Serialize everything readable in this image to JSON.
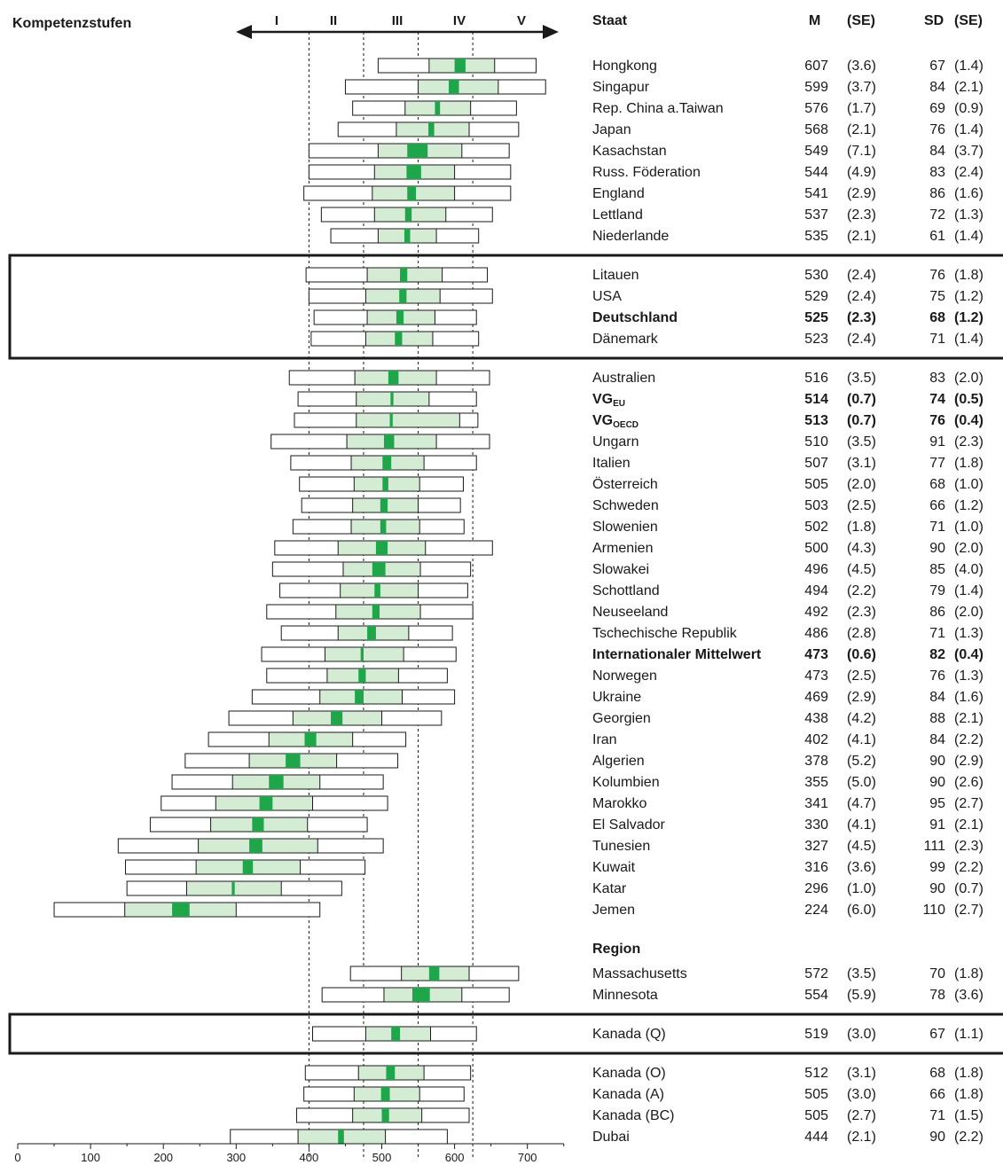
{
  "chart_data": {
    "type": "boxplot",
    "title": "Kompetenzstufen",
    "levels": [
      "I",
      "II",
      "III",
      "IV",
      "V"
    ],
    "level_cutoffs": [
      400,
      475,
      550,
      625
    ],
    "x_ticks": [
      0,
      100,
      200,
      300,
      400,
      500,
      600,
      700
    ],
    "xlim": [
      0,
      750
    ],
    "columns": {
      "country": "Staat",
      "mean": "M",
      "se_mean": "(SE)",
      "sd": "SD",
      "se_sd": "(SE)"
    },
    "groups": [
      {
        "framed": false,
        "rows": [
          {
            "name": "Hongkong",
            "M": "607",
            "SE": "(3.6)",
            "SD": "67",
            "SDSE": "(1.4)",
            "p5": 495,
            "p25": 565,
            "p75": 655,
            "p95": 712,
            "ci": [
              600,
              615
            ]
          },
          {
            "name": "Singapur",
            "M": "599",
            "SE": "(3.7)",
            "SD": "84",
            "SDSE": "(2.1)",
            "p5": 450,
            "p25": 550,
            "p75": 660,
            "p95": 725,
            "ci": [
              592,
              606
            ]
          },
          {
            "name": "Rep. China a.Taiwan",
            "M": "576",
            "SE": "(1.7)",
            "SD": "69",
            "SDSE": "(0.9)",
            "p5": 460,
            "p25": 532,
            "p75": 622,
            "p95": 685,
            "ci": [
              573,
              580
            ]
          },
          {
            "name": "Japan",
            "M": "568",
            "SE": "(2.1)",
            "SD": "76",
            "SDSE": "(1.4)",
            "p5": 440,
            "p25": 520,
            "p75": 620,
            "p95": 688,
            "ci": [
              564,
              572
            ]
          },
          {
            "name": "Kasachstan",
            "M": "549",
            "SE": "(7.1)",
            "SD": "84",
            "SDSE": "(3.7)",
            "p5": 400,
            "p25": 495,
            "p75": 610,
            "p95": 675,
            "ci": [
              535,
              563
            ]
          },
          {
            "name": "Russ. Föderation",
            "M": "544",
            "SE": "(4.9)",
            "SD": "83",
            "SDSE": "(2.4)",
            "p5": 400,
            "p25": 490,
            "p75": 600,
            "p95": 677,
            "ci": [
              534,
              554
            ]
          },
          {
            "name": "England",
            "M": "541",
            "SE": "(2.9)",
            "SD": "86",
            "SDSE": "(1.6)",
            "p5": 393,
            "p25": 487,
            "p75": 600,
            "p95": 677,
            "ci": [
              535,
              547
            ]
          },
          {
            "name": "Lettland",
            "M": "537",
            "SE": "(2.3)",
            "SD": "72",
            "SDSE": "(1.3)",
            "p5": 417,
            "p25": 490,
            "p75": 588,
            "p95": 652,
            "ci": [
              532,
              541
            ]
          },
          {
            "name": "Niederlande",
            "M": "535",
            "SE": "(2.1)",
            "SD": "61",
            "SDSE": "(1.4)",
            "p5": 430,
            "p25": 495,
            "p75": 575,
            "p95": 633,
            "ci": [
              531,
              539
            ]
          }
        ]
      },
      {
        "framed": true,
        "rows": [
          {
            "name": "Litauen",
            "M": "530",
            "SE": "(2.4)",
            "SD": "76",
            "SDSE": "(1.8)",
            "p5": 396,
            "p25": 480,
            "p75": 583,
            "p95": 645,
            "ci": [
              525,
              535
            ]
          },
          {
            "name": "USA",
            "M": "529",
            "SE": "(2.4)",
            "SD": "75",
            "SDSE": "(1.2)",
            "p5": 400,
            "p25": 478,
            "p75": 580,
            "p95": 652,
            "ci": [
              524,
              534
            ]
          },
          {
            "name": "Deutschland",
            "M": "525",
            "SE": "(2.3)",
            "SD": "68",
            "SDSE": "(1.2)",
            "p5": 407,
            "p25": 480,
            "p75": 573,
            "p95": 630,
            "ci": [
              520,
              530
            ],
            "bold": true
          },
          {
            "name": "Dänemark",
            "M": "523",
            "SE": "(2.4)",
            "SD": "71",
            "SDSE": "(1.4)",
            "p5": 403,
            "p25": 478,
            "p75": 570,
            "p95": 633,
            "ci": [
              518,
              528
            ]
          }
        ]
      },
      {
        "framed": false,
        "rows": [
          {
            "name": "Australien",
            "M": "516",
            "SE": "(3.5)",
            "SD": "83",
            "SDSE": "(2.0)",
            "p5": 373,
            "p25": 463,
            "p75": 575,
            "p95": 648,
            "ci": [
              509,
              523
            ]
          },
          {
            "name": "VG",
            "sub": "EU",
            "M": "514",
            "SE": "(0.7)",
            "SD": "74",
            "SDSE": "(0.5)",
            "p5": 385,
            "p25": 465,
            "p75": 565,
            "p95": 630,
            "ci": [
              512,
              516
            ],
            "bold": true
          },
          {
            "name": "VG",
            "sub": "OECD",
            "M": "513",
            "SE": "(0.7)",
            "SD": "76",
            "SDSE": "(0.4)",
            "p5": 380,
            "p25": 465,
            "p75": 607,
            "p95": 632,
            "ci": [
              511,
              515
            ],
            "bold": true
          },
          {
            "name": "Ungarn",
            "M": "510",
            "SE": "(3.5)",
            "SD": "91",
            "SDSE": "(2.3)",
            "p5": 348,
            "p25": 452,
            "p75": 575,
            "p95": 648,
            "ci": [
              503,
              517
            ]
          },
          {
            "name": "Italien",
            "M": "507",
            "SE": "(3.1)",
            "SD": "77",
            "SDSE": "(1.8)",
            "p5": 375,
            "p25": 458,
            "p75": 558,
            "p95": 630,
            "ci": [
              501,
              513
            ]
          },
          {
            "name": "Österreich",
            "M": "505",
            "SE": "(2.0)",
            "SD": "68",
            "SDSE": "(1.0)",
            "p5": 387,
            "p25": 462,
            "p75": 552,
            "p95": 612,
            "ci": [
              501,
              509
            ]
          },
          {
            "name": "Schweden",
            "M": "503",
            "SE": "(2.5)",
            "SD": "66",
            "SDSE": "(1.2)",
            "p5": 390,
            "p25": 460,
            "p75": 550,
            "p95": 608,
            "ci": [
              498,
              508
            ]
          },
          {
            "name": "Slowenien",
            "M": "502",
            "SE": "(1.8)",
            "SD": "71",
            "SDSE": "(1.0)",
            "p5": 378,
            "p25": 458,
            "p75": 552,
            "p95": 613,
            "ci": [
              498,
              506
            ]
          },
          {
            "name": "Armenien",
            "M": "500",
            "SE": "(4.3)",
            "SD": "90",
            "SDSE": "(2.0)",
            "p5": 353,
            "p25": 440,
            "p75": 560,
            "p95": 652,
            "ci": [
              492,
              508
            ]
          },
          {
            "name": "Slowakei",
            "M": "496",
            "SE": "(4.5)",
            "SD": "85",
            "SDSE": "(4.0)",
            "p5": 350,
            "p25": 447,
            "p75": 553,
            "p95": 622,
            "ci": [
              487,
              505
            ]
          },
          {
            "name": "Schottland",
            "M": "494",
            "SE": "(2.2)",
            "SD": "79",
            "SDSE": "(1.4)",
            "p5": 360,
            "p25": 443,
            "p75": 550,
            "p95": 618,
            "ci": [
              490,
              498
            ]
          },
          {
            "name": "Neuseeland",
            "M": "492",
            "SE": "(2.3)",
            "SD": "86",
            "SDSE": "(2.0)",
            "p5": 342,
            "p25": 437,
            "p75": 553,
            "p95": 625,
            "ci": [
              487,
              497
            ]
          },
          {
            "name": "Tschechische Republik",
            "M": "486",
            "SE": "(2.8)",
            "SD": "71",
            "SDSE": "(1.3)",
            "p5": 362,
            "p25": 440,
            "p75": 537,
            "p95": 597,
            "ci": [
              480,
              492
            ]
          },
          {
            "name": "Internationaler Mittelwert",
            "M": "473",
            "SE": "(0.6)",
            "SD": "82",
            "SDSE": "(0.4)",
            "p5": 335,
            "p25": 422,
            "p75": 530,
            "p95": 602,
            "ci": [
              471,
              475
            ],
            "bold": true
          },
          {
            "name": "Norwegen",
            "M": "473",
            "SE": "(2.5)",
            "SD": "76",
            "SDSE": "(1.3)",
            "p5": 342,
            "p25": 425,
            "p75": 523,
            "p95": 590,
            "ci": [
              468,
              478
            ]
          },
          {
            "name": "Ukraine",
            "M": "469",
            "SE": "(2.9)",
            "SD": "84",
            "SDSE": "(1.6)",
            "p5": 322,
            "p25": 415,
            "p75": 528,
            "p95": 600,
            "ci": [
              463,
              475
            ]
          },
          {
            "name": "Georgien",
            "M": "438",
            "SE": "(4.2)",
            "SD": "88",
            "SDSE": "(2.1)",
            "p5": 290,
            "p25": 378,
            "p75": 500,
            "p95": 582,
            "ci": [
              430,
              446
            ]
          },
          {
            "name": "Iran",
            "M": "402",
            "SE": "(4.1)",
            "SD": "84",
            "SDSE": "(2.2)",
            "p5": 262,
            "p25": 345,
            "p75": 460,
            "p95": 533,
            "ci": [
              394,
              410
            ]
          },
          {
            "name": "Algerien",
            "M": "378",
            "SE": "(5.2)",
            "SD": "90",
            "SDSE": "(2.9)",
            "p5": 230,
            "p25": 318,
            "p75": 438,
            "p95": 522,
            "ci": [
              368,
              388
            ]
          },
          {
            "name": "Kolumbien",
            "M": "355",
            "SE": "(5.0)",
            "SD": "90",
            "SDSE": "(2.6)",
            "p5": 212,
            "p25": 295,
            "p75": 415,
            "p95": 502,
            "ci": [
              345,
              365
            ]
          },
          {
            "name": "Marokko",
            "M": "341",
            "SE": "(4.7)",
            "SD": "95",
            "SDSE": "(2.7)",
            "p5": 197,
            "p25": 272,
            "p75": 405,
            "p95": 508,
            "ci": [
              332,
              350
            ]
          },
          {
            "name": "El Salvador",
            "M": "330",
            "SE": "(4.1)",
            "SD": "91",
            "SDSE": "(2.1)",
            "p5": 182,
            "p25": 265,
            "p75": 398,
            "p95": 480,
            "ci": [
              322,
              338
            ]
          },
          {
            "name": "Tunesien",
            "M": "327",
            "SE": "(4.5)",
            "SD": "111",
            "SDSE": "(2.3)",
            "p5": 138,
            "p25": 248,
            "p75": 412,
            "p95": 502,
            "ci": [
              318,
              336
            ]
          },
          {
            "name": "Kuwait",
            "M": "316",
            "SE": "(3.6)",
            "SD": "99",
            "SDSE": "(2.2)",
            "p5": 148,
            "p25": 245,
            "p75": 388,
            "p95": 477,
            "ci": [
              309,
              323
            ]
          },
          {
            "name": "Katar",
            "M": "296",
            "SE": "(1.0)",
            "SD": "90",
            "SDSE": "(0.7)",
            "p5": 150,
            "p25": 232,
            "p75": 362,
            "p95": 445,
            "ci": [
              294,
              298
            ]
          },
          {
            "name": "Jemen",
            "M": "224",
            "SE": "(6.0)",
            "SD": "110",
            "SDSE": "(2.7)",
            "p5": 50,
            "p25": 147,
            "p75": 300,
            "p95": 415,
            "ci": [
              212,
              236
            ]
          }
        ]
      },
      {
        "framed": false,
        "heading": "Region",
        "rows": [
          {
            "name": "Massachusetts",
            "M": "572",
            "SE": "(3.5)",
            "SD": "70",
            "SDSE": "(1.8)",
            "p5": 457,
            "p25": 527,
            "p75": 620,
            "p95": 688,
            "ci": [
              565,
              579
            ]
          },
          {
            "name": "Minnesota",
            "M": "554",
            "SE": "(5.9)",
            "SD": "78",
            "SDSE": "(3.6)",
            "p5": 418,
            "p25": 503,
            "p75": 610,
            "p95": 675,
            "ci": [
              542,
              566
            ]
          }
        ]
      },
      {
        "framed": true,
        "rows": [
          {
            "name": "Kanada (Q)",
            "M": "519",
            "SE": "(3.0)",
            "SD": "67",
            "SDSE": "(1.1)",
            "p5": 405,
            "p25": 478,
            "p75": 567,
            "p95": 630,
            "ci": [
              513,
              525
            ]
          }
        ]
      },
      {
        "framed": false,
        "rows": [
          {
            "name": "Kanada (O)",
            "M": "512",
            "SE": "(3.1)",
            "SD": "68",
            "SDSE": "(1.8)",
            "p5": 395,
            "p25": 468,
            "p75": 558,
            "p95": 622,
            "ci": [
              506,
              518
            ]
          },
          {
            "name": "Kanada (A)",
            "M": "505",
            "SE": "(3.0)",
            "SD": "66",
            "SDSE": "(1.8)",
            "p5": 393,
            "p25": 462,
            "p75": 552,
            "p95": 613,
            "ci": [
              499,
              511
            ]
          },
          {
            "name": "Kanada (BC)",
            "M": "505",
            "SE": "(2.7)",
            "SD": "71",
            "SDSE": "(1.5)",
            "p5": 383,
            "p25": 460,
            "p75": 555,
            "p95": 620,
            "ci": [
              500,
              510
            ]
          },
          {
            "name": "Dubai",
            "M": "444",
            "SE": "(2.1)",
            "SD": "90",
            "SDSE": "(2.2)",
            "p5": 292,
            "p25": 385,
            "p75": 505,
            "p95": 590,
            "ci": [
              440,
              448
            ]
          }
        ]
      }
    ]
  },
  "colors": {
    "box_outer": "#ffffff",
    "box_iqr": "#d4ecd4",
    "ci": "#1fa64b",
    "stroke": "#1a1a1a"
  }
}
